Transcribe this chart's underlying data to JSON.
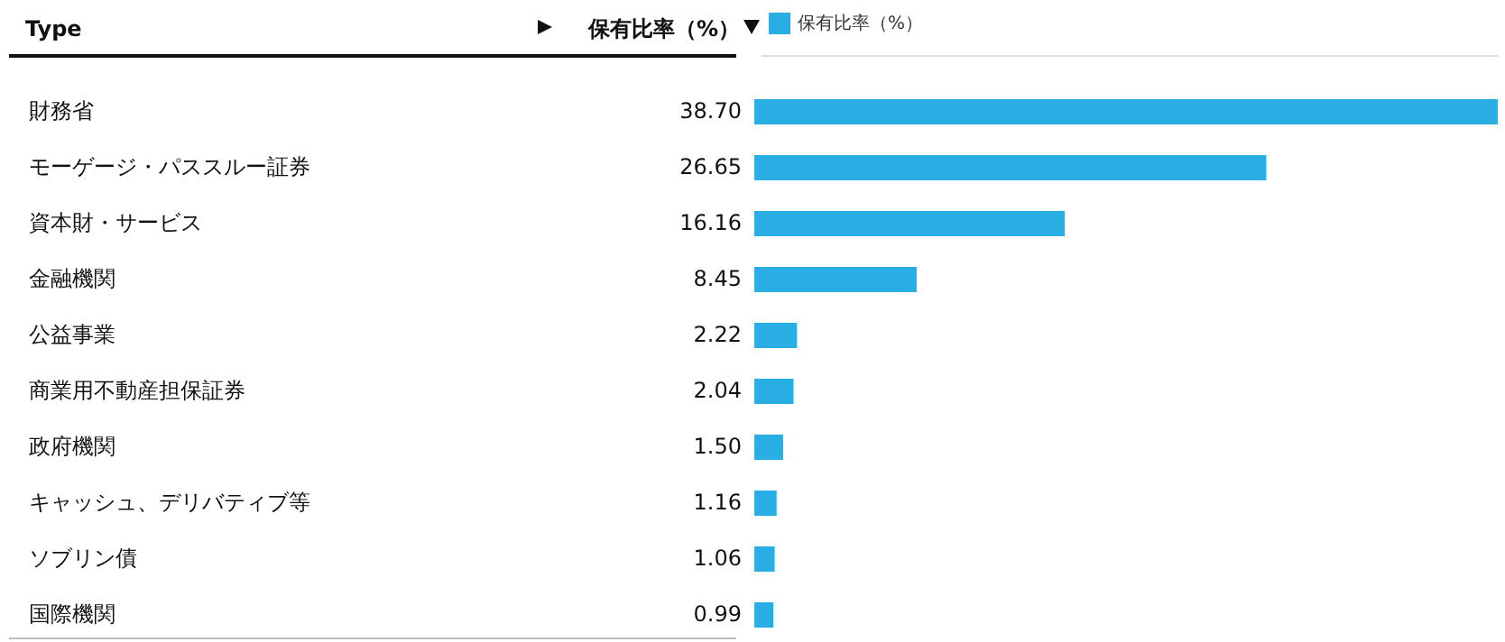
{
  "chart_data": {
    "type": "bar",
    "orientation": "horizontal",
    "ylabel": "Type",
    "xlabel": "保有比率（%）",
    "categories": [
      "財務省",
      "モーゲージ・パススルー証券",
      "資本財・サービス",
      "金融機関",
      "公益事業",
      "商業用不動産担保証券",
      "政府機関",
      "キャッシュ、デリバティブ等",
      "ソブリン債",
      "国際機関"
    ],
    "series": [
      {
        "name": "保有比率（%）",
        "color": "#29aee3",
        "values": [
          38.7,
          26.65,
          16.16,
          8.45,
          2.22,
          2.04,
          1.5,
          1.16,
          1.06,
          0.99
        ],
        "value_labels": [
          "38.70",
          "26.65",
          "16.16",
          "8.45",
          "2.22",
          "2.04",
          "1.50",
          "1.16",
          "1.06",
          "0.99"
        ]
      }
    ],
    "legend": "top left"
  }
}
